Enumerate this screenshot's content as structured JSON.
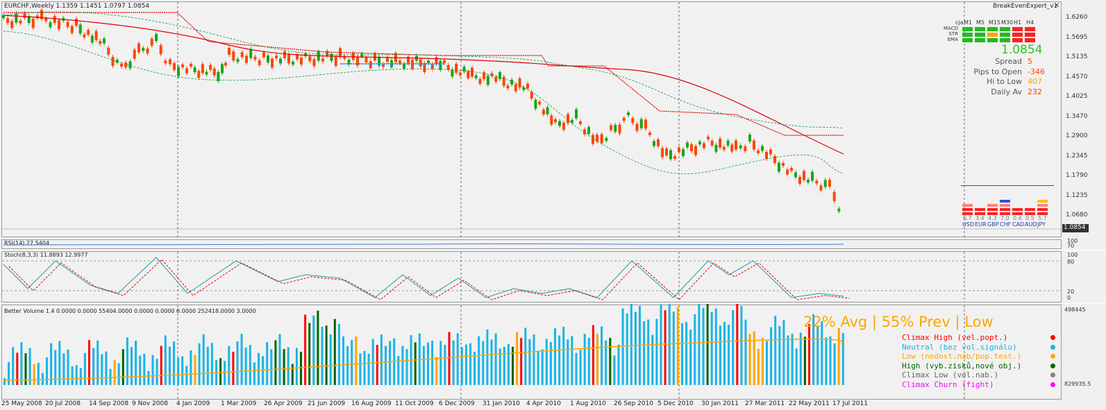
{
  "main": {
    "title": "EURCHF,Weekly  1.1359 1.1451 1.0797 1.0854",
    "expert_name": "BreakEvenExpert_v1",
    "price_axis": [
      "1.6260",
      "1.5695",
      "1.5135",
      "1.4570",
      "1.4025",
      "1.3470",
      "1.2900",
      "1.2345",
      "1.1790",
      "1.1235",
      "1.0680"
    ],
    "current_price": "1.0854"
  },
  "dashboard": {
    "label": "cja",
    "timeframes": [
      "M1",
      "M5",
      "M15",
      "M30",
      "H1",
      "H4"
    ],
    "rows": [
      "MACD",
      "STR",
      "EMA"
    ],
    "price": "1.0854",
    "stats": [
      {
        "label": "Spread",
        "value": "5"
      },
      {
        "label": "Pips to Open",
        "value": "-346"
      },
      {
        "label": "Hi to Low",
        "value": "407"
      },
      {
        "label": "Daily Av",
        "value": "232"
      }
    ],
    "strength_values": [
      "6.7",
      "3.4",
      "4.3",
      "7.0",
      "0.4",
      "0.5",
      "5.7"
    ],
    "currencies": [
      "USD",
      "EUR",
      "GBP",
      "CHF",
      "CAD",
      "AUD",
      "JPY"
    ]
  },
  "rsi": {
    "title": "RSI(14) 27.5404",
    "axis": [
      "100",
      "70",
      "30"
    ]
  },
  "stoch": {
    "title": "Stoch(8,3,3) 11.8893 12.9977",
    "axis": [
      "100",
      "80",
      "20",
      "0"
    ]
  },
  "volume": {
    "title": "Better Volume 1.4 0.0000 0.0000 55404.0000 0.0000 0.0000 0.0000 252418.0000 3.0000",
    "axis_top": "498445",
    "axis_bottom": "829935.5",
    "headline": "22% Avg | 55% Prev | Low",
    "legend": [
      {
        "label": "Climax High (vel.popt.)",
        "color": "#ff0000"
      },
      {
        "label": "Neutral (bez vol.signálu)",
        "color": "#19b4e6"
      },
      {
        "label": "Low (nedost.nab/pop.test.)",
        "color": "#ffa500"
      },
      {
        "label": "High (vyb.zisků,nové obj.)",
        "color": "#006400"
      },
      {
        "label": "Climax Low (vel.nab.)",
        "color": "#808080"
      },
      {
        "label": "Climax Churn (fight)",
        "color": "#ff00ff"
      }
    ]
  },
  "dates": [
    "25 May 2008",
    "20 Jul 2008",
    "14 Sep 2008",
    "9 Nov 2008",
    "4 Jan 2009",
    "1 Mar 2009",
    "26 Apr 2009",
    "21 Jun 2009",
    "16 Aug 2009",
    "11 Oct 2009",
    "6 Dec 2009",
    "31 Jan 2010",
    "4 Apr 2010",
    "1 Aug 2010",
    "26 Sep 2010",
    "5 Dec 2010",
    "30 Jan 2011",
    "27 Mar 2011",
    "22 May 2011",
    "17 Jul 2011"
  ],
  "colors": {
    "bull": "#1aa51a",
    "bear": "#ff4500",
    "ma": "#e00000",
    "band": "#0a9a3a",
    "stoch_main": "#1a9aaa",
    "stoch_signal": "#e00000"
  }
}
